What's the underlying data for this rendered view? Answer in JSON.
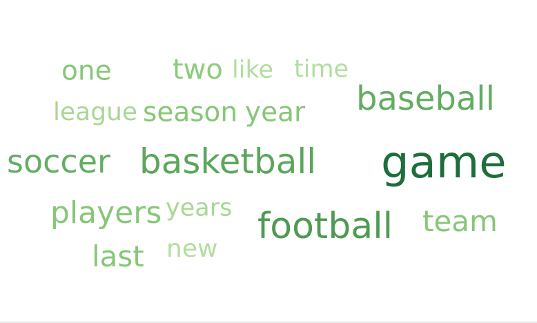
{
  "words": [
    {
      "text": "game",
      "color": "#1e6e3c"
    },
    {
      "text": "football",
      "color": "#4f9a52"
    },
    {
      "text": "basketball",
      "color": "#5aa65b"
    },
    {
      "text": "baseball",
      "color": "#62ad62"
    },
    {
      "text": "soccer",
      "color": "#63ae63"
    },
    {
      "text": "players",
      "color": "#86c777"
    },
    {
      "text": "team",
      "color": "#86c777"
    },
    {
      "text": "season",
      "color": "#86c777"
    },
    {
      "text": "one",
      "color": "#86c777"
    },
    {
      "text": "last",
      "color": "#86c777"
    },
    {
      "text": "two",
      "color": "#8ccb7b"
    },
    {
      "text": "year",
      "color": "#86c777"
    },
    {
      "text": "league",
      "color": "#a7d894"
    },
    {
      "text": "years",
      "color": "#a7d894"
    },
    {
      "text": "like",
      "color": "#b2de9f"
    },
    {
      "text": "time",
      "color": "#b2de9f"
    },
    {
      "text": "new",
      "color": "#b2de9f"
    }
  ]
}
